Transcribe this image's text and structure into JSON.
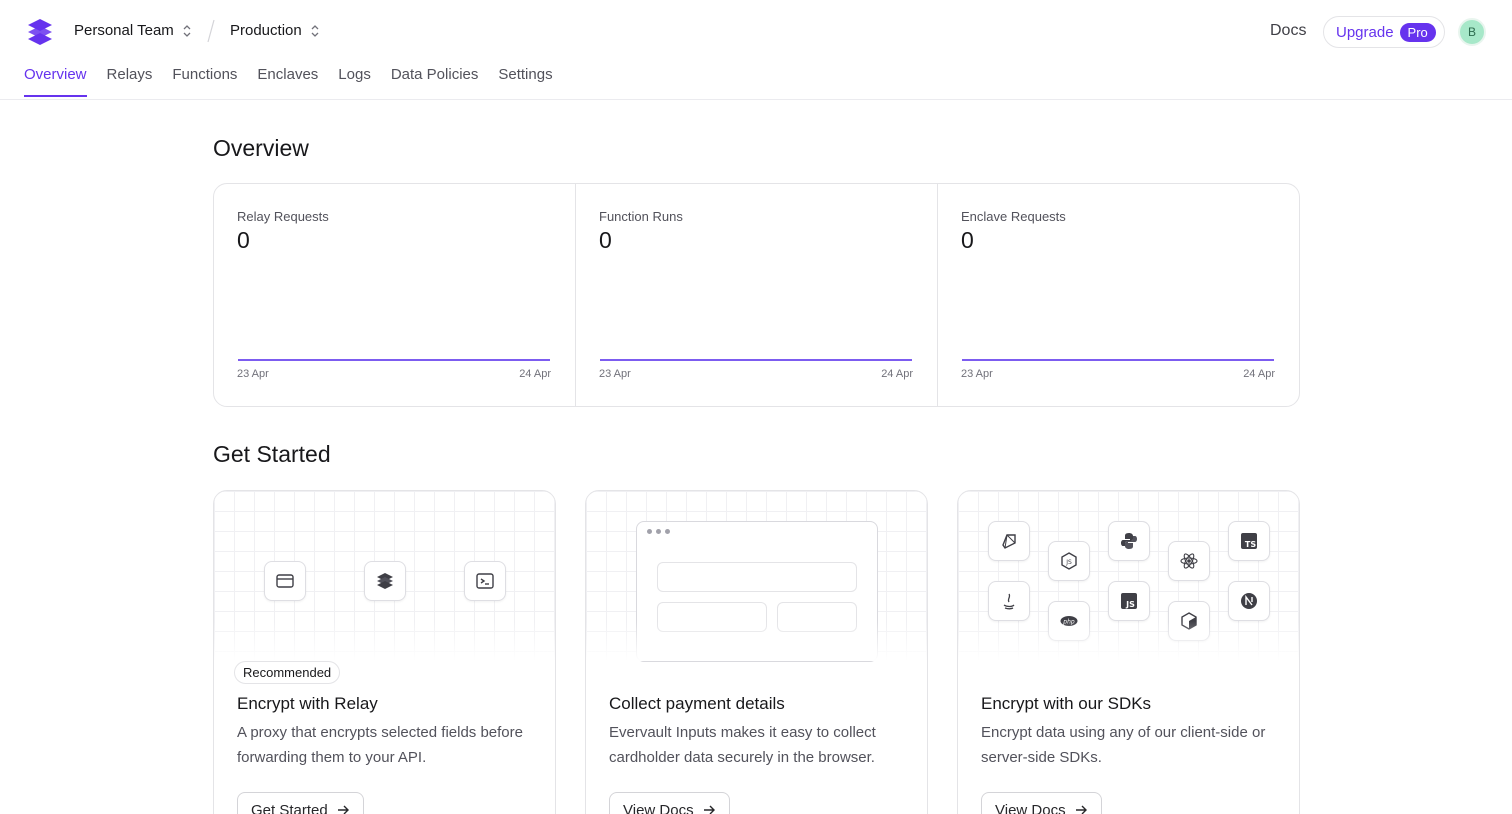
{
  "header": {
    "team_name": "Personal Team",
    "environment": "Production",
    "docs_label": "Docs",
    "upgrade_label": "Upgrade",
    "pro_label": "Pro",
    "avatar_initial": "B",
    "brand_color": "#6633ee"
  },
  "nav": {
    "items": [
      "Overview",
      "Relays",
      "Functions",
      "Enclaves",
      "Logs",
      "Data Policies",
      "Settings"
    ],
    "active": "Overview"
  },
  "overview": {
    "title": "Overview",
    "stats": [
      {
        "label": "Relay Requests",
        "value": "0",
        "start_date": "23 Apr",
        "end_date": "24 Apr"
      },
      {
        "label": "Function Runs",
        "value": "0",
        "start_date": "23 Apr",
        "end_date": "24 Apr"
      },
      {
        "label": "Enclave Requests",
        "value": "0",
        "start_date": "23 Apr",
        "end_date": "24 Apr"
      }
    ]
  },
  "get_started": {
    "title": "Get Started",
    "cards": [
      {
        "badge": "Recommended",
        "title": "Encrypt with Relay",
        "description": "A proxy that encrypts selected fields before forwarding them to your API.",
        "button": "Get Started",
        "icons": [
          "browser-icon",
          "layers-icon",
          "terminal-icon"
        ]
      },
      {
        "title": "Collect payment details",
        "description": "Evervault Inputs makes it easy to collect cardholder data securely in the browser.",
        "button": "View Docs"
      },
      {
        "title": "Encrypt with our SDKs",
        "description": "Encrypt data using any of our client-side or server-side SDKs.",
        "button": "View Docs",
        "icons": [
          "ruby-icon",
          "nodejs-icon",
          "python-icon",
          "react-icon",
          "typescript-icon",
          "java-icon",
          "php-icon",
          "javascript-icon",
          "cube-icon",
          "nextjs-icon"
        ]
      }
    ]
  }
}
